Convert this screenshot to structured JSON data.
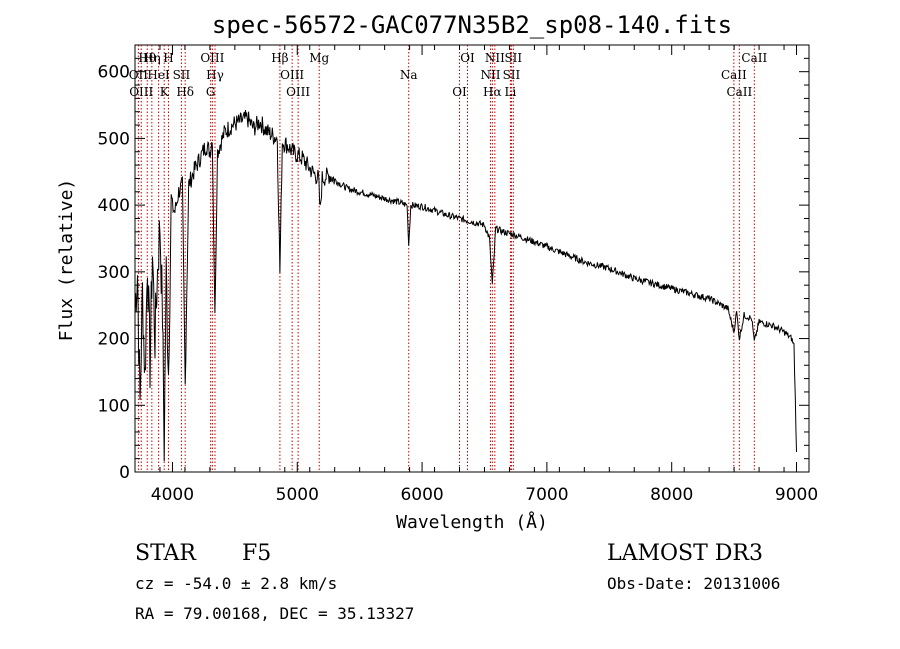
{
  "chart_data": {
    "type": "line",
    "title": "spec-56572-GAC077N35B2_sp08-140.fits",
    "xlabel": "Wavelength (Å)",
    "ylabel": "Flux (relative)",
    "xlim": [
      3700,
      9100
    ],
    "ylim": [
      0,
      640
    ],
    "xticks": [
      4000,
      5000,
      6000,
      7000,
      8000,
      9000
    ],
    "yticks": [
      0,
      100,
      200,
      300,
      400,
      500,
      600
    ],
    "x_tick_labels": [
      "4000",
      "5000",
      "6000",
      "7000",
      "8000",
      "9000"
    ],
    "y_tick_labels": [
      "0",
      "100",
      "200",
      "300",
      "400",
      "500",
      "600"
    ],
    "grid": false,
    "series": [
      {
        "name": "flux",
        "x": [
          3700,
          3720,
          3740,
          3760,
          3780,
          3800,
          3820,
          3840,
          3860,
          3880,
          3900,
          3920,
          3934,
          3950,
          3968,
          3990,
          4020,
          4050,
          4080,
          4102,
          4130,
          4170,
          4220,
          4270,
          4300,
          4320,
          4340,
          4361,
          4380,
          4420,
          4480,
          4540,
          4600,
          4650,
          4700,
          4760,
          4800,
          4840,
          4861,
          4880,
          4920,
          4960,
          5000,
          5040,
          5080,
          5120,
          5170,
          5183,
          5200,
          5260,
          5320,
          5400,
          5500,
          5600,
          5700,
          5800,
          5880,
          5893,
          5910,
          6000,
          6100,
          6200,
          6300,
          6400,
          6500,
          6540,
          6563,
          6590,
          6650,
          6750,
          6900,
          7100,
          7300,
          7500,
          7700,
          7900,
          8100,
          8300,
          8450,
          8498,
          8520,
          8542,
          8580,
          8640,
          8662,
          8700,
          8800,
          8900,
          8960,
          8980,
          8990,
          9000
        ],
        "y": [
          250,
          300,
          100,
          270,
          140,
          320,
          160,
          330,
          200,
          300,
          370,
          240,
          40,
          300,
          150,
          400,
          390,
          420,
          430,
          130,
          430,
          450,
          470,
          490,
          480,
          500,
          230,
          480,
          490,
          510,
          520,
          525,
          530,
          515,
          525,
          510,
          505,
          500,
          300,
          495,
          490,
          480,
          475,
          470,
          460,
          450,
          440,
          390,
          440,
          445,
          435,
          425,
          420,
          415,
          410,
          405,
          400,
          340,
          400,
          398,
          392,
          385,
          380,
          375,
          370,
          350,
          280,
          365,
          360,
          355,
          345,
          330,
          315,
          305,
          290,
          280,
          270,
          260,
          245,
          210,
          240,
          200,
          235,
          230,
          195,
          225,
          220,
          210,
          200,
          190,
          110,
          30
        ]
      }
    ],
    "lines": [
      {
        "label": "Hθ",
        "wave": 3798
      },
      {
        "label": "OII",
        "wave": 3727
      },
      {
        "label": "OIII",
        "wave": 3750
      },
      {
        "label": "Hη",
        "wave": 3835
      },
      {
        "label": "HeI",
        "wave": 3889
      },
      {
        "label": "K",
        "wave": 3934
      },
      {
        "label": "H",
        "wave": 3968
      },
      {
        "label": "SII",
        "wave": 4072
      },
      {
        "label": "Hδ",
        "wave": 4102
      },
      {
        "label": "OIII",
        "wave": 4320
      },
      {
        "label": "Hγ",
        "wave": 4341
      },
      {
        "label": "G",
        "wave": 4306
      },
      {
        "label": "Hβ",
        "wave": 4861
      },
      {
        "label": "OIII",
        "wave": 4959
      },
      {
        "label": "OIII",
        "wave": 5007
      },
      {
        "label": "Mg",
        "wave": 5176
      },
      {
        "label": "Na",
        "wave": 5893
      },
      {
        "label": "OI",
        "wave": 6300
      },
      {
        "label": "OI",
        "wave": 6364
      },
      {
        "label": "NII",
        "wave": 6548
      },
      {
        "label": "Hα",
        "wave": 6563
      },
      {
        "label": "NII",
        "wave": 6583
      },
      {
        "label": "SII",
        "wave": 6716
      },
      {
        "label": "Li",
        "wave": 6708
      },
      {
        "label": "SII",
        "wave": 6731
      },
      {
        "label": "CaII",
        "wave": 8498
      },
      {
        "label": "CaII",
        "wave": 8542
      },
      {
        "label": "CaII",
        "wave": 8662
      }
    ]
  },
  "info": {
    "object_class": "STAR",
    "subclass": "F5",
    "cz": "cz = -54.0 ± 2.8 km/s",
    "coords": "RA =  79.00168, DEC =  35.13327",
    "survey": "LAMOST DR3",
    "obs_date": "Obs-Date: 20131006"
  },
  "colors": {
    "spectrum": "#000000",
    "line_marker": "#cc0000",
    "axes": "#000000",
    "background": "#ffffff"
  }
}
